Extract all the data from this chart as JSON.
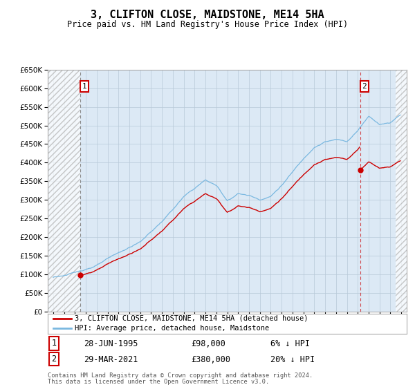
{
  "title": "3, CLIFTON CLOSE, MAIDSTONE, ME14 5HA",
  "subtitle": "Price paid vs. HM Land Registry's House Price Index (HPI)",
  "ylim": [
    0,
    650000
  ],
  "yticks": [
    0,
    50000,
    100000,
    150000,
    200000,
    250000,
    300000,
    350000,
    400000,
    450000,
    500000,
    550000,
    600000,
    650000
  ],
  "ytick_labels": [
    "£0",
    "£50K",
    "£100K",
    "£150K",
    "£200K",
    "£250K",
    "£300K",
    "£350K",
    "£400K",
    "£450K",
    "£500K",
    "£550K",
    "£600K",
    "£650K"
  ],
  "xlim_start": 1992.5,
  "xlim_end": 2025.5,
  "hpi_color": "#7ab8e0",
  "price_color": "#cc0000",
  "bg_color": "#dce9f5",
  "grid_color": "#b8c8d8",
  "point1_x": 1995.49,
  "point1_y": 98000,
  "point2_x": 2021.24,
  "point2_y": 380000,
  "legend_line1": "3, CLIFTON CLOSE, MAIDSTONE, ME14 5HA (detached house)",
  "legend_line2": "HPI: Average price, detached house, Maidstone",
  "point1_date": "28-JUN-1995",
  "point1_price": "£98,000",
  "point1_pct": "6% ↓ HPI",
  "point2_date": "29-MAR-2021",
  "point2_price": "£380,000",
  "point2_pct": "20% ↓ HPI",
  "footer1": "Contains HM Land Registry data © Crown copyright and database right 2024.",
  "footer2": "This data is licensed under the Open Government Licence v3.0.",
  "xticks": [
    1993,
    1994,
    1995,
    1996,
    1997,
    1998,
    1999,
    2000,
    2001,
    2002,
    2003,
    2004,
    2005,
    2006,
    2007,
    2008,
    2009,
    2010,
    2011,
    2012,
    2013,
    2014,
    2015,
    2016,
    2017,
    2018,
    2019,
    2020,
    2021,
    2022,
    2023,
    2024,
    2025
  ]
}
